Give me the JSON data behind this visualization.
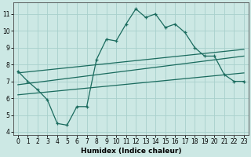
{
  "bg_color": "#cce8e4",
  "grid_color": "#a8d0cc",
  "line_color": "#1a6b5e",
  "xlabel": "Humidex (Indice chaleur)",
  "xlim": [
    -0.5,
    23.5
  ],
  "ylim": [
    3.8,
    11.7
  ],
  "yticks": [
    4,
    5,
    6,
    7,
    8,
    9,
    10,
    11
  ],
  "xticks": [
    0,
    1,
    2,
    3,
    4,
    5,
    6,
    7,
    8,
    9,
    10,
    11,
    12,
    13,
    14,
    15,
    16,
    17,
    18,
    19,
    20,
    21,
    22,
    23
  ],
  "line1_x": [
    0,
    1,
    2,
    3,
    4,
    5,
    6,
    7,
    8,
    9,
    10,
    11,
    12,
    13,
    14,
    15,
    16,
    17,
    18,
    19,
    20,
    21,
    22,
    23
  ],
  "line1_y": [
    7.6,
    7.0,
    6.5,
    5.9,
    4.5,
    4.4,
    5.5,
    5.5,
    8.3,
    9.5,
    9.4,
    10.4,
    11.3,
    10.8,
    11.0,
    10.2,
    10.4,
    9.9,
    9.0,
    8.5,
    8.5,
    7.4,
    7.0,
    7.0
  ],
  "line2_x": [
    0,
    23
  ],
  "line2_y": [
    7.5,
    8.9
  ],
  "line3_x": [
    0,
    23
  ],
  "line3_y": [
    6.8,
    8.5
  ],
  "line4_x": [
    0,
    23
  ],
  "line4_y": [
    6.2,
    7.5
  ]
}
